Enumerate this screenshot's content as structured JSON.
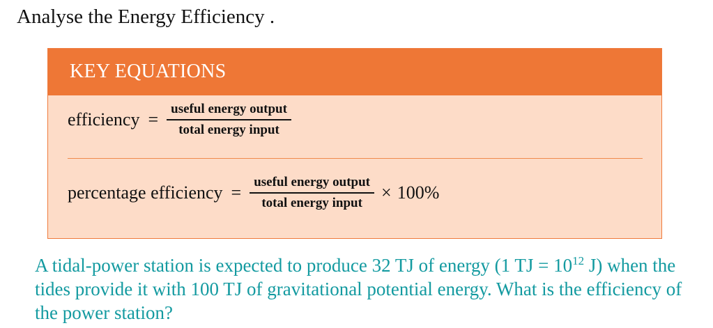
{
  "heading": "Analyse the Energy Efficiency .",
  "key_equations": {
    "title": "KEY EQUATIONS",
    "eq1": {
      "lhs": "efficiency",
      "equals": "=",
      "numerator": "useful energy output",
      "denominator": "total energy input"
    },
    "eq2": {
      "lhs": "percentage efficiency",
      "equals": "=",
      "numerator": "useful energy output",
      "denominator": "total energy input",
      "times": "×",
      "factor": "100%"
    }
  },
  "question": {
    "part1": "A tidal-power station is expected to produce 32 TJ of energy (1 TJ = 10",
    "exponent": "12",
    "part2": " J) when the tides provide it with 100 TJ of gravitational potential energy. What is the efficiency of the power station?"
  },
  "colors": {
    "header_orange": "#ee7736",
    "box_fill": "#fddcc8",
    "question_teal": "#139aa0"
  }
}
